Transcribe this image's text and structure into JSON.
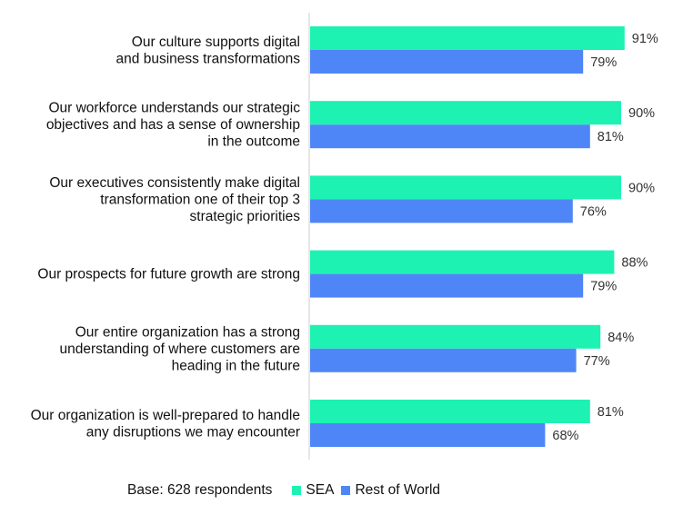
{
  "chart_data": {
    "type": "bar",
    "orientation": "horizontal",
    "categories": [
      [
        "Our culture supports digital",
        "and business transformations"
      ],
      [
        "Our workforce understands our strategic",
        "objectives and has a sense of ownership",
        "in the outcome"
      ],
      [
        "Our executives consistently make digital",
        "transformation one of their top 3",
        "strategic priorities"
      ],
      [
        "Our prospects for future growth are strong"
      ],
      [
        "Our entire organization has a strong",
        "understanding of where customers are",
        "heading in the future"
      ],
      [
        "Our organization is well-prepared to handle",
        "any disruptions we may encounter"
      ]
    ],
    "series": [
      {
        "name": "SEA",
        "color": "#1EF2B2",
        "values": [
          91,
          90,
          90,
          88,
          84,
          81
        ]
      },
      {
        "name": "Rest of World",
        "color": "#4F86F7",
        "values": [
          79,
          81,
          76,
          79,
          77,
          68
        ]
      }
    ],
    "value_suffix": "%",
    "xlim": [
      0,
      100
    ],
    "grid": false,
    "legend_position": "bottom"
  },
  "footer": {
    "base_text": "Base: 628 respondents"
  }
}
